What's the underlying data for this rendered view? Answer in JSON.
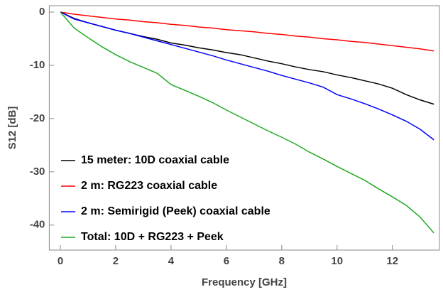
{
  "chart_data": {
    "type": "line",
    "x_label": "Frequency [GHz]",
    "y_label": "S12 [dB]",
    "x": [
      0,
      0.5,
      1,
      1.5,
      2,
      2.5,
      3,
      3.5,
      4,
      4.5,
      5,
      5.5,
      6,
      6.5,
      7,
      7.5,
      8,
      8.5,
      9,
      9.5,
      10,
      10.5,
      11,
      11.5,
      12,
      12.5,
      13,
      13.5
    ],
    "series": [
      {
        "name": "15 meter: 10D coaxial cable",
        "color": "#000000",
        "values": [
          0,
          -1.2,
          -2.0,
          -2.7,
          -3.4,
          -4.0,
          -4.6,
          -5.1,
          -5.8,
          -6.2,
          -6.7,
          -7.1,
          -7.6,
          -8.0,
          -8.6,
          -9.2,
          -9.7,
          -10.3,
          -10.8,
          -11.2,
          -11.8,
          -12.3,
          -12.9,
          -13.5,
          -14.3,
          -15.5,
          -16.5,
          -17.3
        ]
      },
      {
        "name": "2 m: RG223 coaxial cable",
        "color": "#ff0000",
        "values": [
          0,
          -0.4,
          -0.7,
          -1.0,
          -1.3,
          -1.5,
          -1.8,
          -2.0,
          -2.3,
          -2.5,
          -2.8,
          -3.0,
          -3.3,
          -3.5,
          -3.7,
          -4.0,
          -4.2,
          -4.5,
          -4.7,
          -5.0,
          -5.2,
          -5.5,
          -5.7,
          -6.0,
          -6.3,
          -6.6,
          -6.9,
          -7.3
        ]
      },
      {
        "name": "2 m: Semirigid (Peek) coaxial cable",
        "color": "#0000ff",
        "values": [
          0,
          -1.3,
          -2.0,
          -2.7,
          -3.4,
          -4.0,
          -4.7,
          -5.4,
          -6.1,
          -6.8,
          -7.5,
          -8.2,
          -9.0,
          -9.7,
          -10.4,
          -11.1,
          -11.9,
          -12.6,
          -13.3,
          -14.1,
          -15.5,
          -16.3,
          -17.2,
          -18.2,
          -19.3,
          -20.5,
          -22.0,
          -24.0
        ]
      },
      {
        "name": "Total: 10D + RG223 + Peek",
        "color": "#22aa22",
        "values": [
          0,
          -3.0,
          -4.8,
          -6.5,
          -8.0,
          -9.3,
          -10.4,
          -11.5,
          -13.6,
          -14.7,
          -15.8,
          -17.0,
          -18.4,
          -19.7,
          -21.0,
          -22.3,
          -23.5,
          -24.8,
          -26.3,
          -27.6,
          -29.0,
          -30.3,
          -31.6,
          -33.2,
          -34.7,
          -36.3,
          -38.5,
          -41.5
        ]
      }
    ],
    "xlim": [
      -0.4,
      13.7
    ],
    "xticks": [
      0,
      2,
      4,
      6,
      8,
      10,
      12
    ],
    "ylim": [
      -44.7,
      1.2
    ],
    "yticks": [
      0,
      -10,
      -20,
      -30,
      -40
    ],
    "grid": false,
    "legend": "lower left"
  }
}
